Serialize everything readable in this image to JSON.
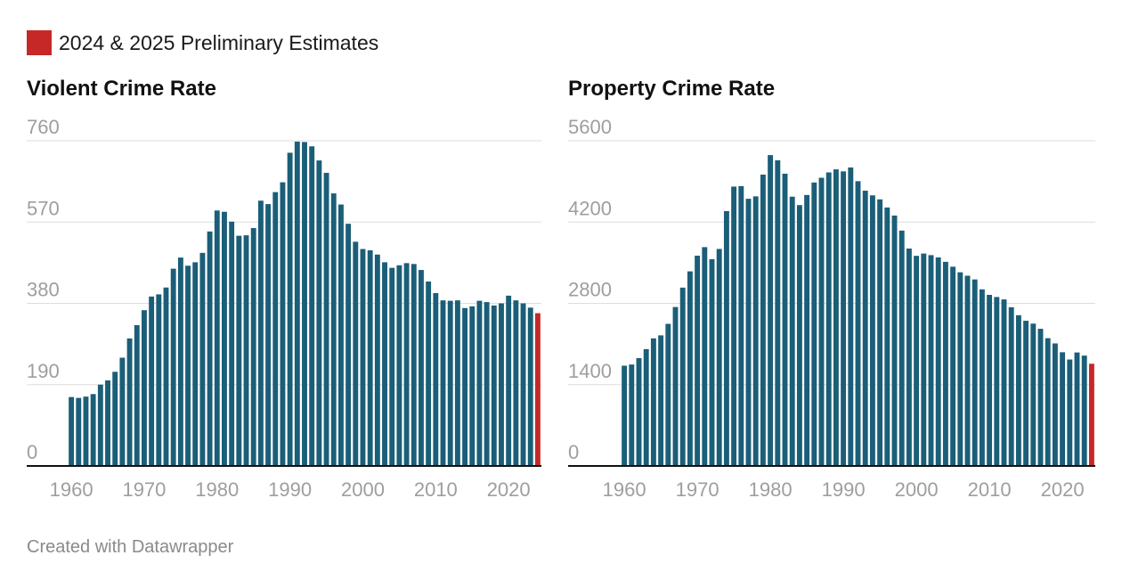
{
  "legend": {
    "label": "2024 & 2025 Preliminary Estimates",
    "color": "#c62828"
  },
  "footer": {
    "text": "Created with Datawrapper"
  },
  "colors": {
    "bar": "#1b5e78",
    "estimate": "#c62828",
    "grid": "#dddddd",
    "tick": "#9e9e9e",
    "axis": "#111111"
  },
  "chart_data": [
    {
      "type": "bar",
      "title": "Violent Crime Rate",
      "xlabel": "",
      "ylabel": "",
      "ylim": [
        0,
        760
      ],
      "yticks": [
        0,
        190,
        380,
        570,
        760
      ],
      "xticks": [
        1960,
        1970,
        1980,
        1990,
        2000,
        2010,
        2020
      ],
      "x_start": 1960,
      "estimate_years": [
        2024,
        2025
      ],
      "values": [
        161,
        159,
        162,
        168,
        190,
        200,
        220,
        253,
        298,
        329,
        364,
        396,
        401,
        417,
        461,
        487,
        468,
        476,
        498,
        548,
        597,
        594,
        571,
        538,
        539,
        556,
        620,
        612,
        640,
        663,
        732,
        758,
        757,
        747,
        714,
        685,
        637,
        611,
        566,
        524,
        507,
        504,
        494,
        476,
        463,
        469,
        474,
        472,
        458,
        431,
        404,
        387,
        386,
        387,
        369,
        373,
        386,
        383,
        375,
        380,
        398,
        387,
        380,
        370,
        357
      ]
    },
    {
      "type": "bar",
      "title": "Property Crime Rate",
      "xlabel": "",
      "ylabel": "",
      "ylim": [
        0,
        5600
      ],
      "yticks": [
        0,
        1400,
        2800,
        4200,
        5600
      ],
      "xticks": [
        1960,
        1970,
        1980,
        1990,
        2000,
        2010,
        2020
      ],
      "x_start": 1960,
      "estimate_years": [
        2024,
        2025
      ],
      "values": [
        1726,
        1747,
        1857,
        2012,
        2197,
        2249,
        2447,
        2737,
        3071,
        3351,
        3621,
        3768,
        3560,
        3737,
        4389,
        4811,
        4819,
        4601,
        4643,
        5017,
        5353,
        5264,
        5033,
        4637,
        4492,
        4666,
        4881,
        4963,
        5055,
        5107,
        5073,
        5140,
        4904,
        4740,
        4660,
        4591,
        4451,
        4312,
        4053,
        3744,
        3618,
        3658,
        3630,
        3591,
        3515,
        3431,
        3335,
        3276,
        3212,
        3041,
        2946,
        2909,
        2868,
        2733,
        2596,
        2500,
        2451,
        2362,
        2200,
        2110,
        1958,
        1833,
        1954,
        1900,
        1760
      ]
    }
  ]
}
